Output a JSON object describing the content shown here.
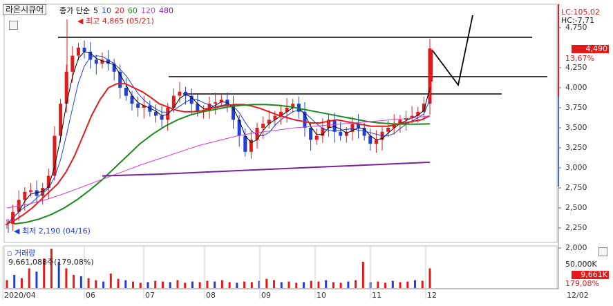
{
  "stock": {
    "name": "라온시큐어"
  },
  "ma_header": {
    "items": [
      {
        "label": "종가 단순",
        "color": "#000000"
      },
      {
        "label": "5",
        "color": "#000000"
      },
      {
        "label": "10",
        "color": "#1f3fd6"
      },
      {
        "label": "20",
        "color": "#e11b1b"
      },
      {
        "label": "60",
        "color": "#188a18"
      },
      {
        "label": "120",
        "color": "#d23cd2"
      },
      {
        "label": "480",
        "color": "#7a1e9a"
      }
    ]
  },
  "annotations": {
    "high": "최고 4,865 (05/21)",
    "low": "최저 2,190 (04/16)"
  },
  "right_tags": {
    "lc": "LC:105,02",
    "hc": "HC:-7,71",
    "price": "4,490",
    "change_pct": "13,67%"
  },
  "price_axis": [
    "4,750",
    "4,500",
    "4,250",
    "4,000",
    "3,750",
    "3,500",
    "3,250",
    "3,000",
    "2,750",
    "2,500",
    "2,250",
    "2,000"
  ],
  "date_axis": [
    "2020/04",
    "06",
    "07",
    "08",
    "09",
    "10",
    "11",
    "12",
    "12/02"
  ],
  "volume": {
    "title": "거래량",
    "value_text": "9,661,088주(179,08%)",
    "axis_label": "50,000K",
    "tag_value": "9,661K",
    "tag_pct": "179,08%"
  },
  "colors": {
    "up": "#e11b1b",
    "down": "#1f3fd6",
    "ma5": "#000000",
    "ma10": "#1f3fd6",
    "ma20": "#e11b1b",
    "ma60": "#188a18",
    "ma120": "#d23cd2",
    "ma480": "#7a1e9a"
  },
  "chart_data": {
    "type": "candlestick",
    "price_range": [
      2000,
      4865
    ],
    "high": {
      "value": 4865,
      "date": "05/21"
    },
    "low": {
      "value": 2190,
      "date": "04/16"
    },
    "last_close": 4490,
    "close_series": [
      2300,
      2450,
      2600,
      2700,
      2720,
      2650,
      2750,
      2900,
      3400,
      3800,
      4200,
      4400,
      4500,
      4450,
      4350,
      4300,
      4350,
      4300,
      4200,
      4000,
      3900,
      3800,
      3750,
      3780,
      3700,
      3650,
      3600,
      3750,
      3900,
      3950,
      3900,
      3800,
      3700,
      3720,
      3800,
      3820,
      3850,
      3780,
      3600,
      3400,
      3200,
      3350,
      3500,
      3550,
      3600,
      3650,
      3700,
      3750,
      3800,
      3700,
      3500,
      3350,
      3400,
      3500,
      3600,
      3450,
      3400,
      3450,
      3550,
      3500,
      3400,
      3300,
      3350,
      3450,
      3500,
      3550,
      3600,
      3620,
      3650,
      3700,
      3800,
      4490
    ],
    "ma20_series": [
      2300,
      2350,
      2420,
      2500,
      2600,
      2700,
      2800,
      2950,
      3150,
      3400,
      3650,
      3850,
      4000,
      4050,
      4050,
      4000,
      3950,
      3880,
      3800,
      3760,
      3720,
      3700,
      3700,
      3710,
      3740,
      3760,
      3780,
      3790,
      3790,
      3770,
      3740,
      3700,
      3660,
      3630,
      3600,
      3580,
      3560,
      3560,
      3580,
      3600,
      3580,
      3560,
      3540,
      3520,
      3520,
      3520,
      3540,
      3560,
      3580,
      3600,
      3650
    ],
    "ma60_series": [
      2300,
      2320,
      2360,
      2420,
      2500,
      2600,
      2720,
      2850,
      3000,
      3150,
      3300,
      3420,
      3520,
      3600,
      3660,
      3700,
      3730,
      3760,
      3780,
      3790,
      3790,
      3780,
      3760,
      3730,
      3700,
      3670,
      3640,
      3610,
      3580,
      3560,
      3550,
      3545,
      3545,
      3550
    ],
    "ma120_series": [
      2500,
      2540,
      2600,
      2680,
      2770,
      2860,
      2950,
      3040,
      3120,
      3200,
      3280,
      3340,
      3400,
      3440,
      3470,
      3500,
      3520,
      3540,
      3560,
      3580,
      3600,
      3620,
      3650
    ],
    "ma480_series": [
      2900,
      2920,
      2950,
      2980,
      3010,
      3040,
      3070
    ],
    "trendlines": [
      "4,750 resistance",
      "4,150 resistance",
      "3,950 resistance"
    ],
    "volume_bars": [
      12,
      20,
      15,
      30,
      25,
      45,
      60,
      40,
      30,
      20,
      18,
      15,
      12,
      10,
      22,
      14,
      12,
      10,
      8,
      9,
      11,
      10,
      9,
      12,
      8,
      10,
      9,
      11,
      10,
      12,
      9,
      8,
      10,
      9,
      11,
      14,
      12,
      9,
      10,
      8,
      9,
      11,
      10,
      12,
      9,
      8,
      10,
      12,
      40,
      9,
      10,
      8,
      11,
      9,
      10,
      12,
      11,
      30
    ]
  }
}
